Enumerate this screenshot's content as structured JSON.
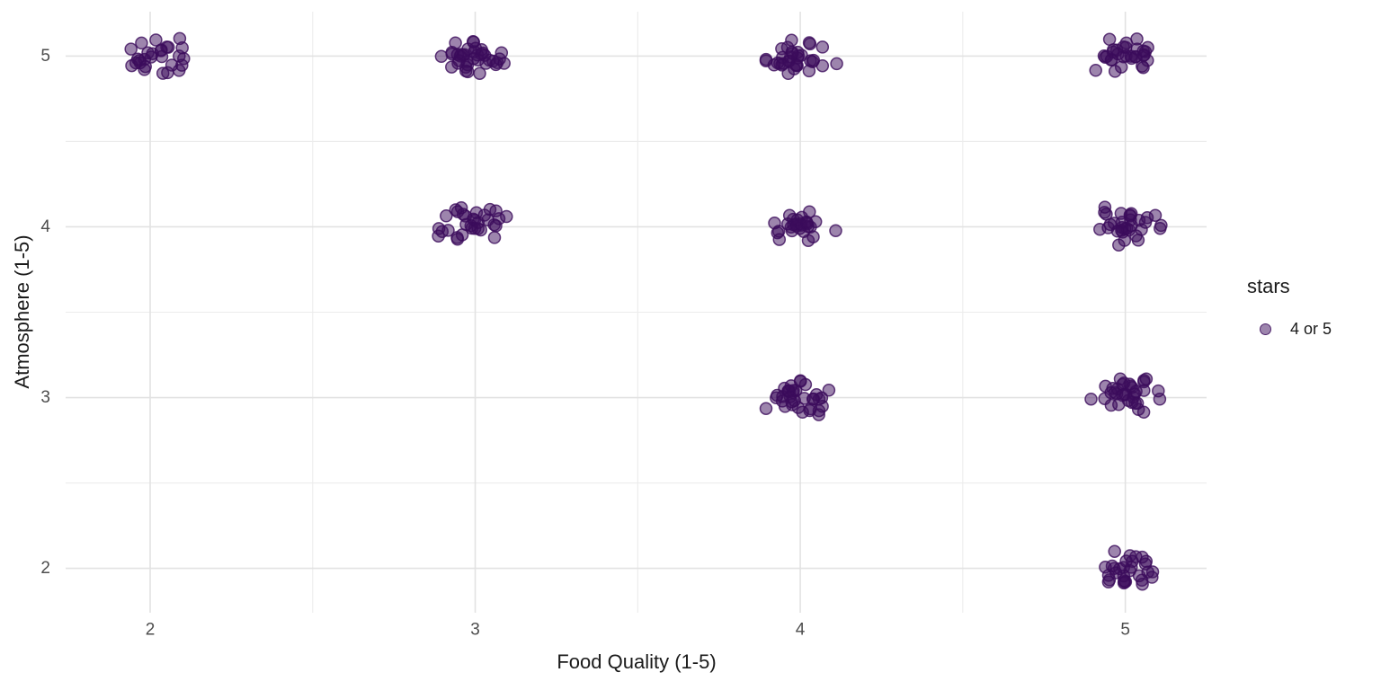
{
  "chart_data": {
    "type": "scatter",
    "title": "",
    "xlabel": "Food Quality (1-5)",
    "ylabel": "Atmosphere (1-5)",
    "x_ticks": [
      2,
      3,
      4,
      5
    ],
    "y_ticks": [
      2,
      3,
      4,
      5
    ],
    "x_minor_ticks": [
      2.5,
      3.5,
      4.5
    ],
    "y_minor_ticks": [
      2.5,
      3.5,
      4.5
    ],
    "xlim": [
      1.74,
      5.25
    ],
    "ylim": [
      1.74,
      5.26
    ],
    "grid": "major+minor",
    "jitter": {
      "width": 0.12,
      "height": 0.12
    },
    "point_style": {
      "color": "#3B0B5B",
      "fill_opacity": 0.5,
      "stroke_opacity": 0.8,
      "stroke_width": 1.5,
      "radius": 6.5
    },
    "legend": {
      "title": "stars",
      "position": "right",
      "items": [
        {
          "label": "4 or 5",
          "color": "#3B0B5B"
        }
      ]
    },
    "clusters": [
      {
        "x": 2,
        "y": 5,
        "n": 28
      },
      {
        "x": 3,
        "y": 5,
        "n": 38
      },
      {
        "x": 4,
        "y": 5,
        "n": 34
      },
      {
        "x": 5,
        "y": 5,
        "n": 32
      },
      {
        "x": 3,
        "y": 4,
        "n": 32
      },
      {
        "x": 4,
        "y": 4,
        "n": 28
      },
      {
        "x": 5,
        "y": 4,
        "n": 32
      },
      {
        "x": 4,
        "y": 3,
        "n": 35
      },
      {
        "x": 5,
        "y": 3,
        "n": 34
      },
      {
        "x": 5,
        "y": 2,
        "n": 30
      }
    ]
  },
  "colors": {
    "grid_major": "#e2e2e2",
    "grid_minor": "#ececec",
    "tick_label": "#4d4d4d",
    "axis_title": "#1a1a1a",
    "background": "#ffffff"
  }
}
